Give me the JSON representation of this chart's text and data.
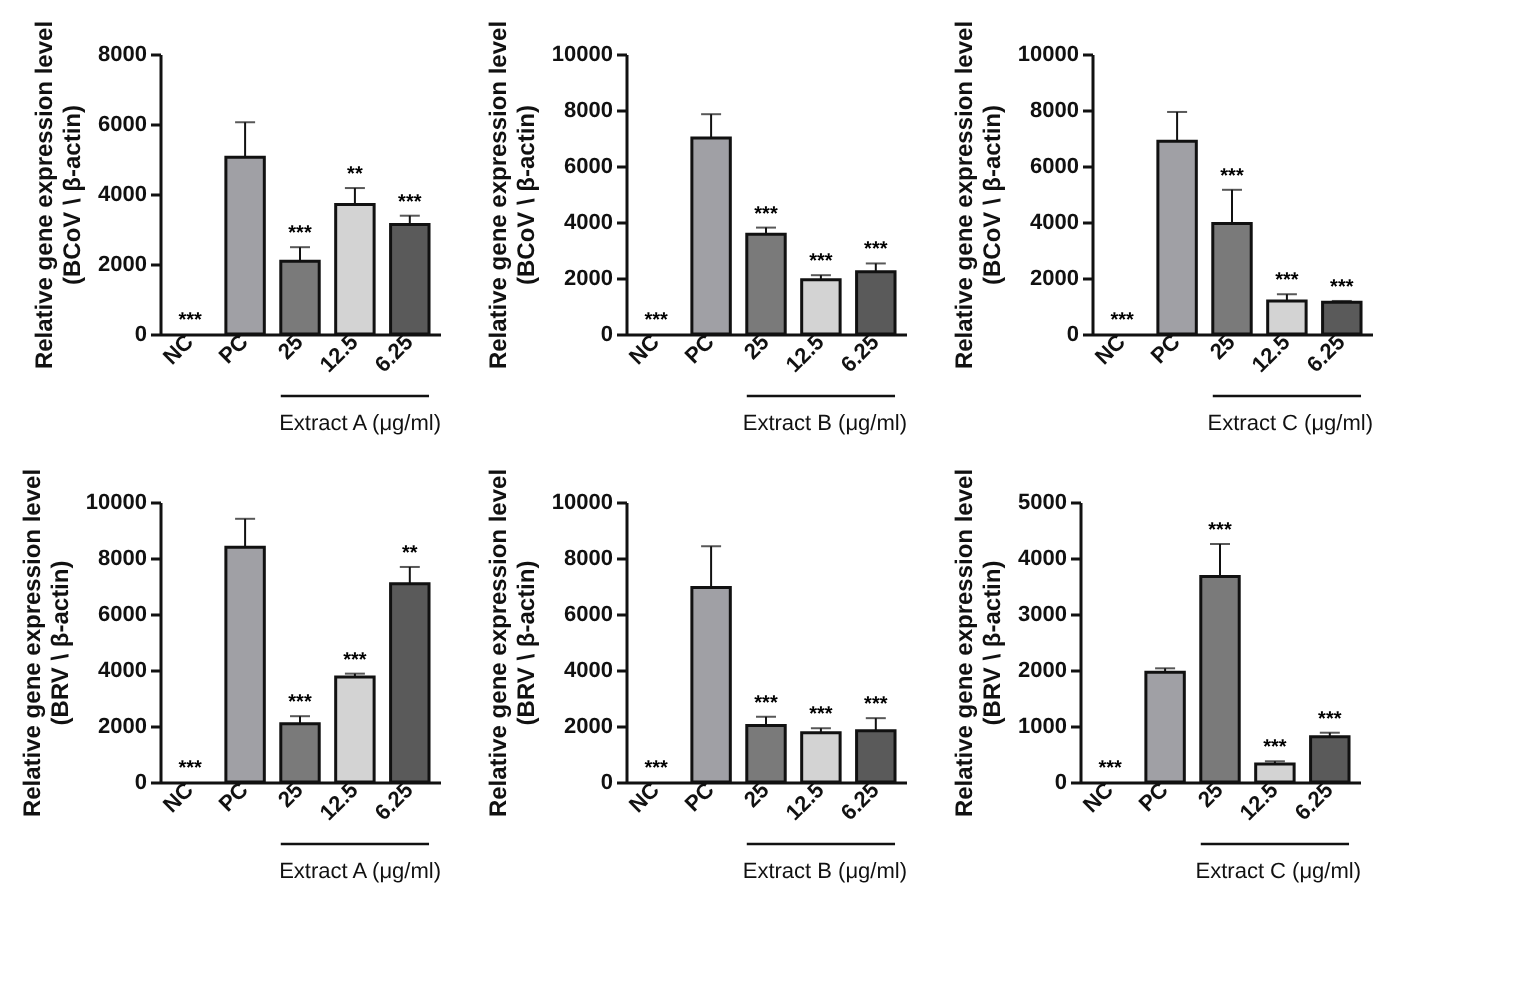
{
  "chart_data": [
    {
      "type": "bar",
      "ylabel": "Relative gene expression level\n(BCoV \\ β-actin)",
      "xlabel": "Extract A (μg/ml)",
      "categories": [
        "NC",
        "PC",
        "25",
        "12.5",
        "6.25"
      ],
      "values": [
        0,
        5050,
        2080,
        3700,
        3130
      ],
      "colors": [
        "#a0a0a5",
        "#a0a0a5",
        "#7a7a7a",
        "#d3d3d3",
        "#5a5a5a"
      ],
      "errors": [
        null,
        [
          5050,
          6050
        ],
        [
          2080,
          2480
        ],
        [
          3700,
          4170
        ],
        [
          3130,
          3380
        ]
      ],
      "ylim": [
        0,
        8000
      ],
      "yticks": [
        0,
        2000,
        4000,
        6000,
        8000
      ],
      "annotations": [
        {
          "text": "***",
          "x": "NC",
          "y": 0
        },
        {
          "text": "***",
          "x": "25",
          "y": 2480
        },
        {
          "text": "**",
          "x": "12.5",
          "y": 4170
        },
        {
          "text": "***",
          "x": "6.25",
          "y": 3380
        }
      ]
    },
    {
      "type": "bar",
      "ylabel": "Relative gene expression level\n(BCoV \\ β-actin)",
      "xlabel": "Extract B (μg/ml)",
      "categories": [
        "NC",
        "PC",
        "25",
        "12.5",
        "6.25"
      ],
      "values": [
        0,
        7000,
        3560,
        1940,
        2220
      ],
      "colors": [
        "#a0a0a5",
        "#a0a0a5",
        "#7a7a7a",
        "#d3d3d3",
        "#5a5a5a"
      ],
      "errors": [
        null,
        [
          7000,
          7850
        ],
        [
          3560,
          3800
        ],
        [
          1940,
          2100
        ],
        [
          2220,
          2520
        ]
      ],
      "ylim": [
        0,
        10000
      ],
      "yticks": [
        0,
        2000,
        4000,
        6000,
        8000,
        10000
      ],
      "annotations": [
        {
          "text": "***",
          "x": "NC",
          "y": 0
        },
        {
          "text": "***",
          "x": "25",
          "y": 3800
        },
        {
          "text": "***",
          "x": "12.5",
          "y": 2100
        },
        {
          "text": "***",
          "x": "6.25",
          "y": 2520
        }
      ]
    },
    {
      "type": "bar",
      "ylabel": "Relative gene expression level\n(BCoV \\ β-actin)",
      "xlabel": "Extract C (μg/ml)",
      "categories": [
        "NC",
        "PC",
        "25",
        "12.5",
        "6.25"
      ],
      "values": [
        0,
        6880,
        3950,
        1180,
        1130
      ],
      "colors": [
        "#a0a0a5",
        "#a0a0a5",
        "#7a7a7a",
        "#d3d3d3",
        "#5a5a5a"
      ],
      "errors": [
        null,
        [
          6880,
          7930
        ],
        [
          3950,
          5150
        ],
        [
          1180,
          1420
        ],
        [
          1130,
          1180
        ]
      ],
      "ylim": [
        0,
        10000
      ],
      "yticks": [
        0,
        2000,
        4000,
        6000,
        8000,
        10000
      ],
      "annotations": [
        {
          "text": "***",
          "x": "NC",
          "y": 0
        },
        {
          "text": "***",
          "x": "25",
          "y": 5150
        },
        {
          "text": "***",
          "x": "12.5",
          "y": 1420
        },
        {
          "text": "***",
          "x": "6.25",
          "y": 1180
        }
      ]
    },
    {
      "type": "bar",
      "ylabel": "Relative gene expression level\n(BRV \\ β-actin)",
      "xlabel": "Extract A (μg/ml)",
      "categories": [
        "NC",
        "PC",
        "25",
        "12.5",
        "6.25"
      ],
      "values": [
        0,
        8380,
        2080,
        3750,
        7080
      ],
      "colors": [
        "#a0a0a5",
        "#a0a0a5",
        "#7a7a7a",
        "#d3d3d3",
        "#5a5a5a"
      ],
      "errors": [
        null,
        [
          8380,
          9400
        ],
        [
          2080,
          2350
        ],
        [
          3750,
          3870
        ],
        [
          7080,
          7680
        ]
      ],
      "ylim": [
        0,
        10000
      ],
      "yticks": [
        0,
        2000,
        4000,
        6000,
        8000,
        10000
      ],
      "annotations": [
        {
          "text": "***",
          "x": "NC",
          "y": 0
        },
        {
          "text": "***",
          "x": "25",
          "y": 2350
        },
        {
          "text": "***",
          "x": "12.5",
          "y": 3870
        },
        {
          "text": "**",
          "x": "6.25",
          "y": 7680
        }
      ]
    },
    {
      "type": "bar",
      "ylabel": "Relative gene expression level\n(BRV \\ β-actin)",
      "xlabel": "Extract B (μg/ml)",
      "categories": [
        "NC",
        "PC",
        "25",
        "12.5",
        "6.25"
      ],
      "values": [
        0,
        6950,
        2020,
        1760,
        1830
      ],
      "colors": [
        "#a0a0a5",
        "#a0a0a5",
        "#7a7a7a",
        "#d3d3d3",
        "#5a5a5a"
      ],
      "errors": [
        null,
        [
          6950,
          8420
        ],
        [
          2020,
          2330
        ],
        [
          1760,
          1920
        ],
        [
          1830,
          2280
        ]
      ],
      "ylim": [
        0,
        10000
      ],
      "yticks": [
        0,
        2000,
        4000,
        6000,
        8000,
        10000
      ],
      "annotations": [
        {
          "text": "***",
          "x": "NC",
          "y": 0
        },
        {
          "text": "***",
          "x": "25",
          "y": 2330
        },
        {
          "text": "***",
          "x": "12.5",
          "y": 1920
        },
        {
          "text": "***",
          "x": "6.25",
          "y": 2280
        }
      ]
    },
    {
      "type": "bar",
      "ylabel": "Relative gene expression level\n(BRV \\ β-actin)",
      "xlabel": "Extract C (μg/ml)",
      "categories": [
        "NC",
        "PC",
        "25",
        "12.5",
        "6.25"
      ],
      "values": [
        0,
        1960,
        3670,
        320,
        810
      ],
      "colors": [
        "#a0a0a5",
        "#a0a0a5",
        "#7a7a7a",
        "#d3d3d3",
        "#5a5a5a"
      ],
      "errors": [
        null,
        [
          1960,
          2030
        ],
        [
          3670,
          4250
        ],
        [
          320,
          370
        ],
        [
          810,
          880
        ]
      ],
      "ylim": [
        0,
        5000
      ],
      "yticks": [
        0,
        1000,
        2000,
        3000,
        4000,
        5000
      ],
      "annotations": [
        {
          "text": "***",
          "x": "NC",
          "y": 0
        },
        {
          "text": "***",
          "x": "25",
          "y": 4250
        },
        {
          "text": "***",
          "x": "12.5",
          "y": 370
        },
        {
          "text": "***",
          "x": "6.25",
          "y": 880
        }
      ]
    }
  ]
}
